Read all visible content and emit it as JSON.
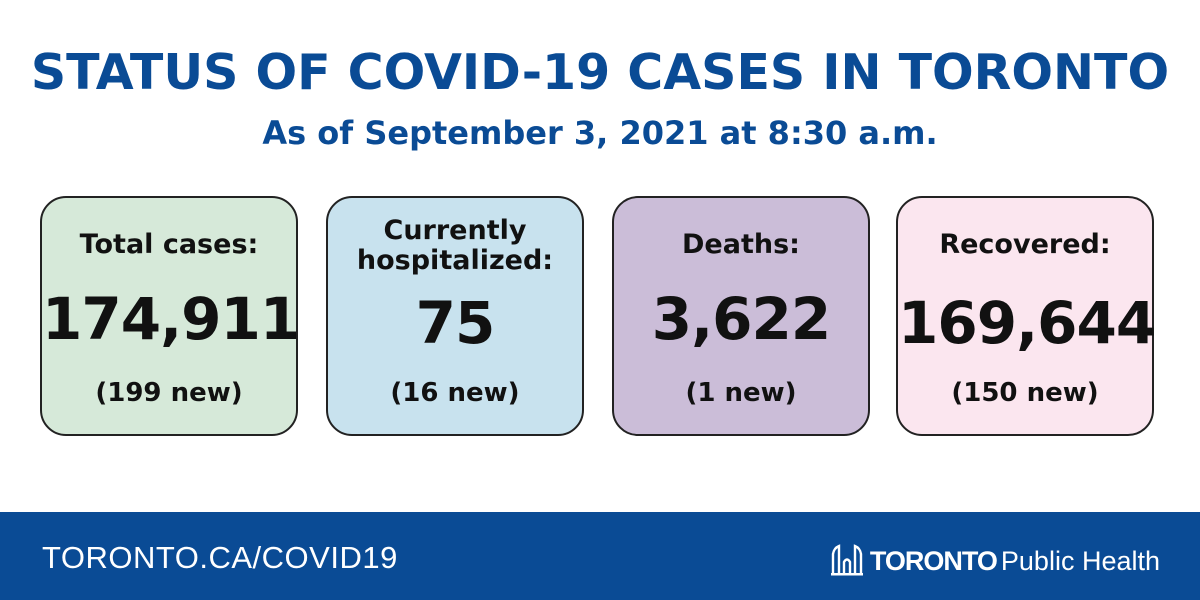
{
  "header": {
    "title": "STATUS OF COVID-19 CASES IN TORONTO",
    "subtitle": "As of September 3, 2021 at 8:30 a.m."
  },
  "cards": [
    {
      "label": "Total cases:",
      "value": "174,911",
      "new": "(199 new)",
      "color": "#d6e9d9"
    },
    {
      "label_line1": "Currently",
      "label_line2": "hospitalized:",
      "value": "75",
      "new": "(16 new)",
      "color": "#c8e2ee"
    },
    {
      "label": "Deaths:",
      "value": "3,622",
      "new": "(1 new)",
      "color": "#cbbdd8"
    },
    {
      "label": "Recovered:",
      "value": "169,644",
      "new": "(150 new)",
      "color": "#fbe6ef"
    }
  ],
  "footer": {
    "url": "TORONTO.CA/COVID19",
    "logo_brand": "TORONTO",
    "logo_text": "Public Health",
    "logo_icon": "city-hall-icon",
    "background": "#0a4b95"
  }
}
